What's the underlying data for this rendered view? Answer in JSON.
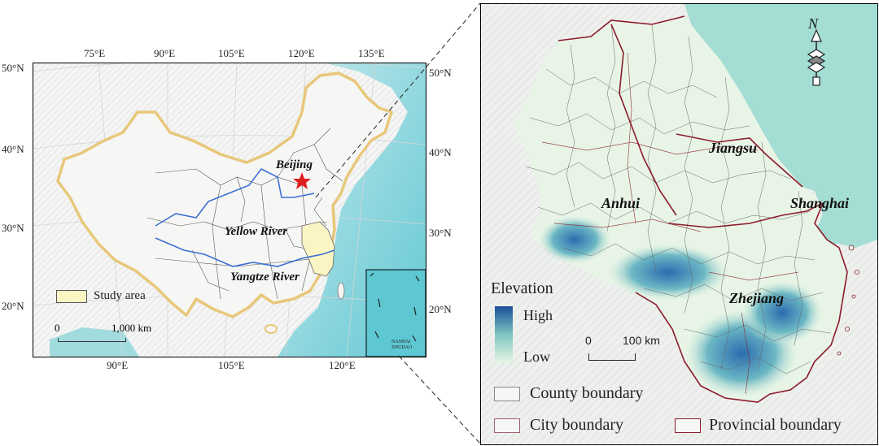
{
  "left_map": {
    "top_lon_ticks": [
      "75°E",
      "90°E",
      "105°E",
      "120°E",
      "135°E"
    ],
    "bottom_lon_ticks": [
      "90°E",
      "105°E",
      "120°E"
    ],
    "left_lat_ticks": [
      "50°N",
      "40°N",
      "30°N",
      "20°N"
    ],
    "right_lat_ticks": [
      "50°N",
      "40°N",
      "30°N",
      "20°N"
    ],
    "labels": {
      "capital": "Beijing",
      "yellow_river": "Yellow River",
      "yangtze_river": "Yangtze River",
      "inset": "NANHAI ZHUDAO"
    },
    "legend": {
      "study_area": "Study area"
    },
    "scale": {
      "start": "0",
      "end": "1,000 km"
    },
    "colors": {
      "border": "#e8c77a",
      "study_area": "#fbf5c4",
      "river": "#3d6fd6",
      "capital": "#e02020",
      "sea": "#7fd3d8"
    }
  },
  "right_map": {
    "provinces": [
      "Jiangsu",
      "Anhui",
      "Shanghai",
      "Zhejiang"
    ],
    "north": "N",
    "elevation_legend": {
      "title": "Elevation",
      "high": "High",
      "low": "Low"
    },
    "scale": {
      "start": "0",
      "end": "100 km"
    },
    "boundary_legend": {
      "county": "County boundary",
      "city": "City boundary",
      "provincial": "Provincial boundary"
    },
    "colors": {
      "land_low": "#e8f5e6",
      "land_high": "#1a4f9a",
      "sea": "#a3ddd4",
      "provincial": "#8b1a2b"
    }
  }
}
